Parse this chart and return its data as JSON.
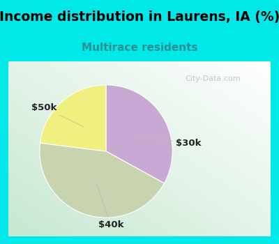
{
  "title": "Income distribution in Laurens, IA (%)",
  "subtitle": "Multirace residents",
  "title_color": "#000000",
  "subtitle_color": "#2a9090",
  "slices": [
    {
      "label": "$30k",
      "value": 33,
      "color": "#c9a8d4"
    },
    {
      "label": "$40k",
      "value": 44,
      "color": "#c8d4b0"
    },
    {
      "label": "$50k",
      "value": 23,
      "color": "#f0f080"
    }
  ],
  "bg_outer_color": "#00e8e8",
  "bg_chart_top_color": "#ffffff",
  "bg_chart_bottom_color": "#c8e8d4",
  "watermark": "City-Data.com",
  "label_color": "#222222",
  "title_fontsize": 13.5,
  "subtitle_fontsize": 11
}
